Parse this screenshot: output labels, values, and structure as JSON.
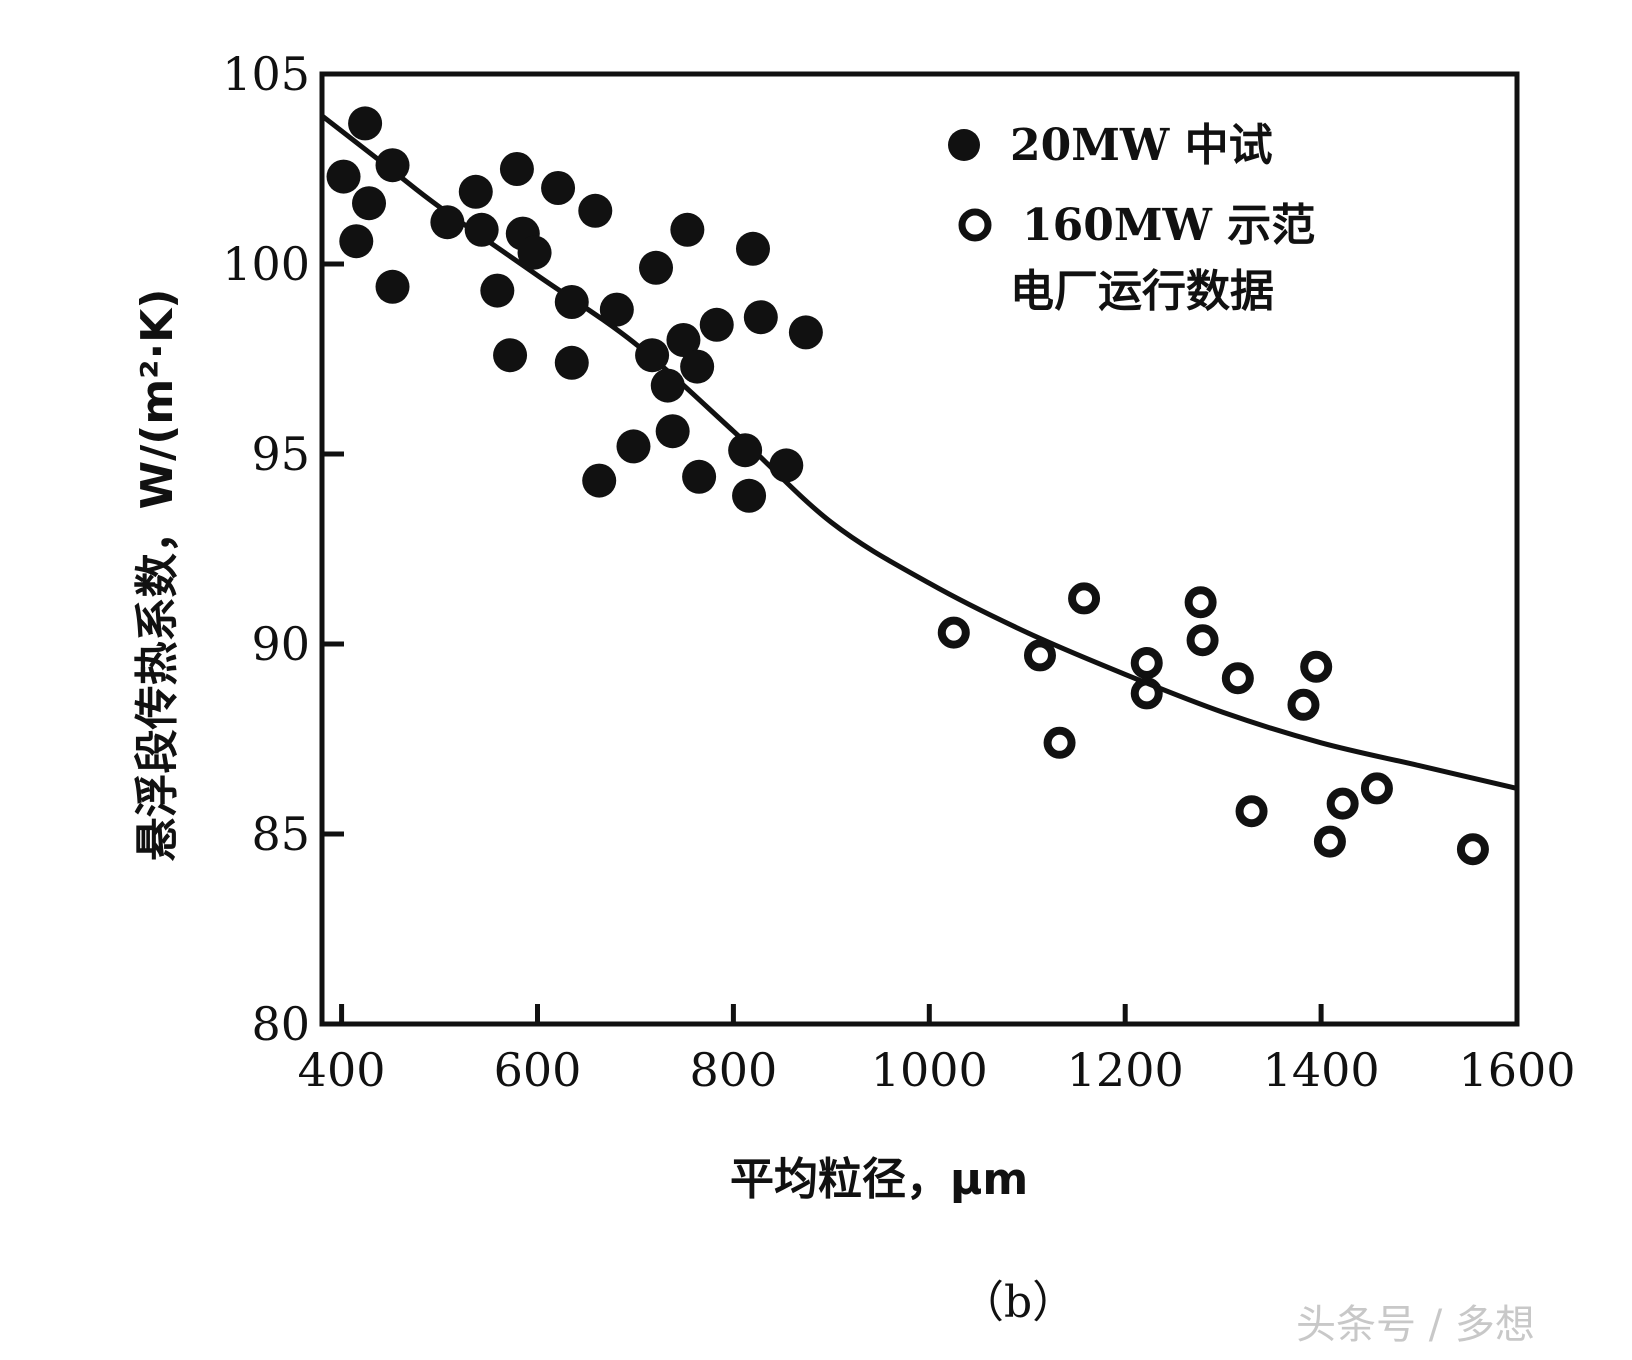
{
  "chart_data": {
    "type": "scatter",
    "xlabel": "平均粒径，μm",
    "ylabel": "悬浮段传热系数，W/(m²·K)",
    "xlim": [
      380,
      1600
    ],
    "ylim": [
      80,
      105
    ],
    "x_ticks": [
      400,
      600,
      800,
      1000,
      1200,
      1400,
      1600
    ],
    "x_tick_labels": [
      "400",
      "600",
      "800",
      "1000",
      "1200",
      "1400",
      "1600"
    ],
    "y_ticks": [
      80,
      85,
      90,
      95,
      100,
      105
    ],
    "y_tick_labels": [
      "80",
      "85",
      "90",
      "95",
      "100",
      "105"
    ],
    "grid": false,
    "legend_position": "top-right",
    "legend_note": "电厂运行数据",
    "series": [
      {
        "name": "20MW 中试",
        "marker": "filled-circle",
        "points": [
          [
            402,
            102.3
          ],
          [
            415,
            100.6
          ],
          [
            424,
            103.7
          ],
          [
            428,
            101.6
          ],
          [
            452,
            102.6
          ],
          [
            452,
            99.4
          ],
          [
            508,
            101.1
          ],
          [
            537,
            101.9
          ],
          [
            543,
            100.9
          ],
          [
            559,
            99.3
          ],
          [
            572,
            97.6
          ],
          [
            579,
            102.5
          ],
          [
            585,
            100.8
          ],
          [
            597,
            100.3
          ],
          [
            621,
            102.0
          ],
          [
            635,
            99.0
          ],
          [
            635,
            97.4
          ],
          [
            659,
            101.4
          ],
          [
            663,
            94.3
          ],
          [
            681,
            98.8
          ],
          [
            698,
            95.2
          ],
          [
            717,
            97.6
          ],
          [
            721,
            99.9
          ],
          [
            733,
            96.8
          ],
          [
            738,
            95.6
          ],
          [
            749,
            98.0
          ],
          [
            753,
            100.9
          ],
          [
            763,
            97.3
          ],
          [
            765,
            94.4
          ],
          [
            783,
            98.4
          ],
          [
            812,
            95.1
          ],
          [
            816,
            93.9
          ],
          [
            820,
            100.4
          ],
          [
            828,
            98.6
          ],
          [
            854,
            94.7
          ],
          [
            874,
            98.2
          ]
        ]
      },
      {
        "name": "160MW 示范",
        "marker": "open-circle",
        "points": [
          [
            1025,
            90.3
          ],
          [
            1113,
            89.7
          ],
          [
            1133,
            87.4
          ],
          [
            1158,
            91.2
          ],
          [
            1222,
            89.5
          ],
          [
            1222,
            88.7
          ],
          [
            1277,
            91.1
          ],
          [
            1279,
            90.1
          ],
          [
            1315,
            89.1
          ],
          [
            1329,
            85.6
          ],
          [
            1382,
            88.4
          ],
          [
            1395,
            89.4
          ],
          [
            1409,
            84.8
          ],
          [
            1422,
            85.8
          ],
          [
            1457,
            86.2
          ],
          [
            1555,
            84.6
          ]
        ]
      },
      {
        "name": "fit",
        "line": true,
        "points": [
          [
            380,
            103.9
          ],
          [
            450,
            102.5
          ],
          [
            500,
            101.5
          ],
          [
            600,
            99.7
          ],
          [
            700,
            97.9
          ],
          [
            800,
            95.6
          ],
          [
            900,
            93.2
          ],
          [
            1000,
            91.6
          ],
          [
            1100,
            90.3
          ],
          [
            1200,
            89.2
          ],
          [
            1300,
            88.2
          ],
          [
            1400,
            87.4
          ],
          [
            1500,
            86.8
          ],
          [
            1600,
            86.2
          ]
        ]
      }
    ]
  },
  "caption": "（b）",
  "watermark": "头条号 / 多想"
}
